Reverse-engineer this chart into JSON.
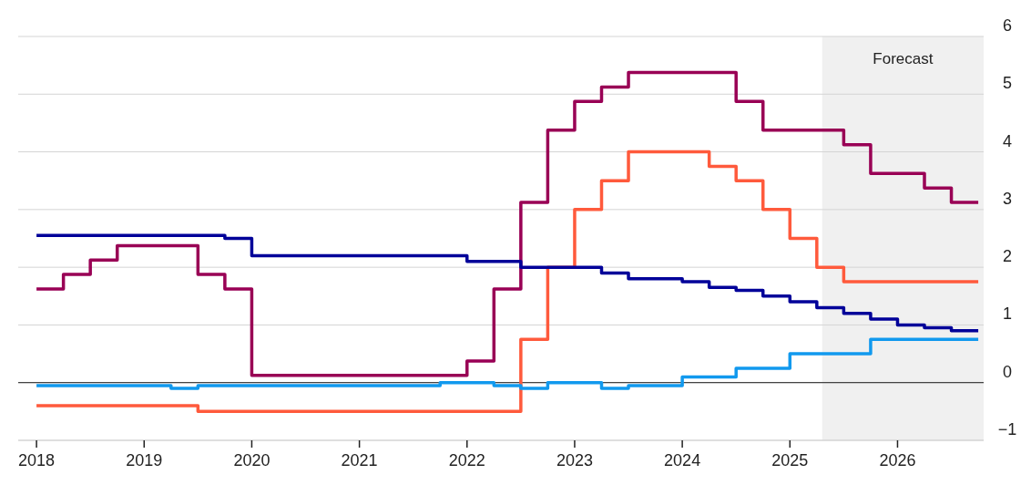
{
  "chart_data": {
    "type": "step",
    "x": [
      2018,
      2018.25,
      2018.5,
      2018.75,
      2019,
      2019.25,
      2019.5,
      2019.75,
      2020,
      2020.25,
      2020.5,
      2020.75,
      2021,
      2021.25,
      2021.5,
      2021.75,
      2022,
      2022.25,
      2022.5,
      2022.75,
      2023,
      2023.25,
      2023.5,
      2023.75,
      2024,
      2024.25,
      2024.5,
      2024.75,
      2025,
      2025.25,
      2025.5,
      2025.75,
      2026,
      2026.25,
      2026.5,
      2026.75
    ],
    "series": [
      {
        "color": "#990055",
        "values": [
          1.625,
          1.875,
          2.125,
          2.375,
          2.375,
          2.375,
          1.875,
          1.625,
          0.125,
          0.125,
          0.125,
          0.125,
          0.125,
          0.125,
          0.125,
          0.125,
          0.375,
          1.625,
          3.125,
          4.375,
          4.875,
          5.125,
          5.375,
          5.375,
          5.375,
          5.375,
          4.875,
          4.375,
          4.375,
          4.375,
          4.125,
          3.625,
          3.625,
          3.375,
          3.125,
          3.125
        ]
      },
      {
        "color": "#ff5a3c",
        "values": [
          -0.4,
          -0.4,
          -0.4,
          -0.4,
          -0.4,
          -0.4,
          -0.5,
          -0.5,
          -0.5,
          -0.5,
          -0.5,
          -0.5,
          -0.5,
          -0.5,
          -0.5,
          -0.5,
          -0.5,
          -0.5,
          0.75,
          2.0,
          3.0,
          3.5,
          4.0,
          4.0,
          4.0,
          3.75,
          3.5,
          3.0,
          2.5,
          2.0,
          1.75,
          1.75,
          1.75,
          1.75,
          1.75,
          1.75
        ]
      },
      {
        "color": "#000099",
        "values": [
          2.55,
          2.55,
          2.55,
          2.55,
          2.55,
          2.55,
          2.55,
          2.5,
          2.2,
          2.2,
          2.2,
          2.2,
          2.2,
          2.2,
          2.2,
          2.2,
          2.1,
          2.1,
          2.0,
          2.0,
          2.0,
          1.9,
          1.8,
          1.8,
          1.75,
          1.65,
          1.6,
          1.5,
          1.4,
          1.3,
          1.2,
          1.1,
          1.0,
          0.95,
          0.9,
          0.9
        ]
      },
      {
        "color": "#1199ee",
        "values": [
          -0.05,
          -0.05,
          -0.05,
          -0.05,
          -0.05,
          -0.1,
          -0.05,
          -0.05,
          -0.05,
          -0.05,
          -0.05,
          -0.05,
          -0.05,
          -0.05,
          -0.05,
          0.0,
          0.0,
          -0.05,
          -0.1,
          0.0,
          0.0,
          -0.1,
          -0.05,
          -0.05,
          0.1,
          0.1,
          0.25,
          0.25,
          0.5,
          0.5,
          0.5,
          0.75,
          0.75,
          0.75,
          0.75,
          0.75
        ]
      }
    ],
    "xlim": [
      2017.83,
      2026.8
    ],
    "xticks": [
      2018,
      2019,
      2020,
      2021,
      2022,
      2023,
      2024,
      2025,
      2026
    ],
    "ylim": [
      -1,
      6
    ],
    "yticks": [
      {
        "value": -1,
        "label": "−1"
      },
      0,
      1,
      2,
      3,
      4,
      5,
      6
    ],
    "bands": [
      {
        "axis": "x",
        "from": 2025.3,
        "to": 2026.8,
        "label": "Forecast",
        "color": "#f0f0f0"
      }
    ],
    "ref_lines": [
      {
        "axis": "y",
        "value": 0,
        "color": "#444444"
      }
    ],
    "grid": "y",
    "marker": "none",
    "line_style": "solid"
  }
}
